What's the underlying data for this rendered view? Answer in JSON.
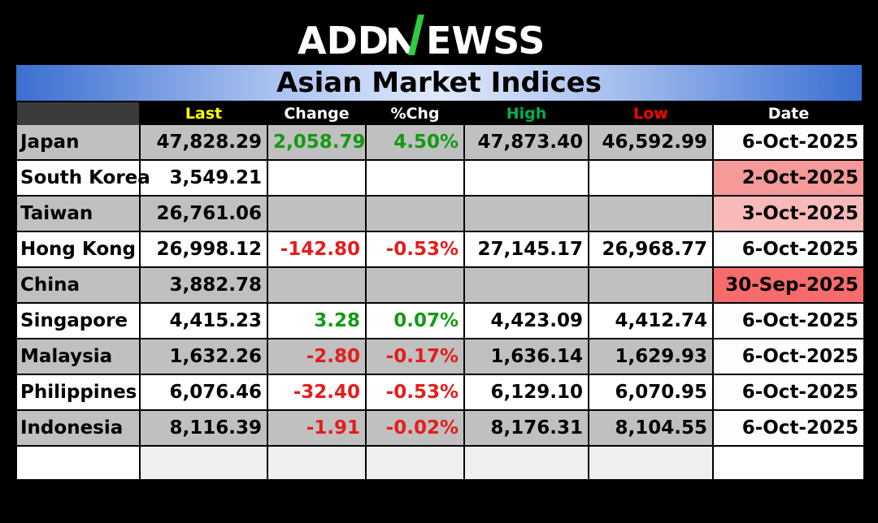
{
  "logo": {
    "text_left": "ADD",
    "text_mark": "N",
    "text_right": "EWSS",
    "bar_color": "#2ecc40",
    "text_color": "#ffffff"
  },
  "title": "Asian Market Indices",
  "headers": {
    "last": "Last",
    "change": "Change",
    "pct": "%Chg",
    "high": "High",
    "low": "Low",
    "date": "Date"
  },
  "header_colors": {
    "last": "#ffff00",
    "change": "#ffffff",
    "pct": "#ffffff",
    "high": "#00b050",
    "low": "#ff0000",
    "date": "#ffffff"
  },
  "rows": [
    {
      "country": "Japan",
      "last": "47,828.29",
      "change": "2,058.79",
      "pct": "4.50%",
      "high": "47,873.40",
      "low": "46,592.99",
      "date": "6-Oct-2025",
      "dir": "pos",
      "date_bg": "#fdfdfd"
    },
    {
      "country": "South Korea",
      "last": "3,549.21",
      "change": "",
      "pct": "",
      "high": "",
      "low": "",
      "date": "2-Oct-2025",
      "dir": "",
      "date_bg": "#f59999"
    },
    {
      "country": "Taiwan",
      "last": "26,761.06",
      "change": "",
      "pct": "",
      "high": "",
      "low": "",
      "date": "3-Oct-2025",
      "dir": "",
      "date_bg": "#f8b9b9"
    },
    {
      "country": "Hong Kong",
      "last": "26,998.12",
      "change": "-142.80",
      "pct": "-0.53%",
      "high": "27,145.17",
      "low": "26,968.77",
      "date": "6-Oct-2025",
      "dir": "neg",
      "date_bg": "#fdfdfd"
    },
    {
      "country": "China",
      "last": "3,882.78",
      "change": "",
      "pct": "",
      "high": "",
      "low": "",
      "date": "30-Sep-2025",
      "dir": "",
      "date_bg": "#f66b6b"
    },
    {
      "country": "Singapore",
      "last": "4,415.23",
      "change": "3.28",
      "pct": "0.07%",
      "high": "4,423.09",
      "low": "4,412.74",
      "date": "6-Oct-2025",
      "dir": "pos",
      "date_bg": "#fdfdfd"
    },
    {
      "country": "Malaysia",
      "last": "1,632.26",
      "change": "-2.80",
      "pct": "-0.17%",
      "high": "1,636.14",
      "low": "1,629.93",
      "date": "6-Oct-2025",
      "dir": "neg",
      "date_bg": "#fdfdfd"
    },
    {
      "country": "Philippines",
      "last": "6,076.46",
      "change": "-32.40",
      "pct": "-0.53%",
      "high": "6,129.10",
      "low": "6,070.95",
      "date": "6-Oct-2025",
      "dir": "neg",
      "date_bg": "#fdfdfd"
    },
    {
      "country": "Indonesia",
      "last": "8,116.39",
      "change": "-1.91",
      "pct": "-0.02%",
      "high": "8,176.31",
      "low": "8,104.55",
      "date": "6-Oct-2025",
      "dir": "neg",
      "date_bg": "#fdfdfd"
    }
  ]
}
